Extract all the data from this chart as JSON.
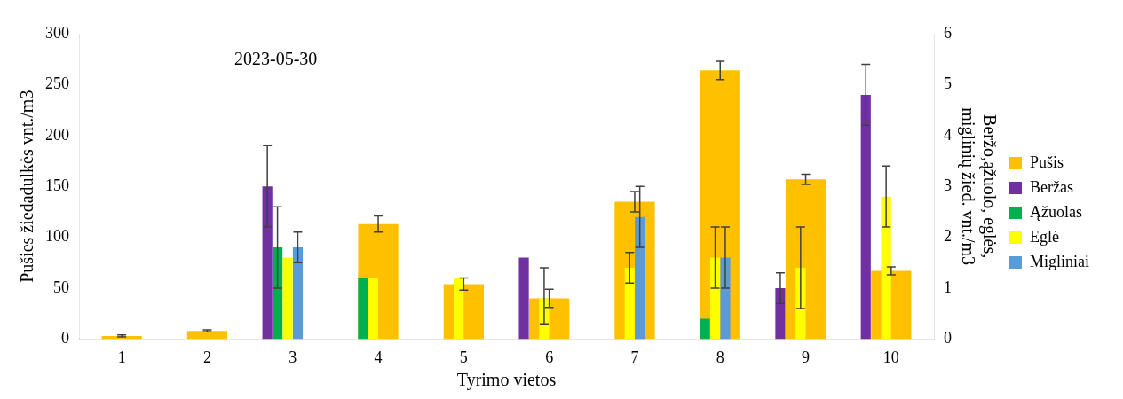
{
  "chart_data": {
    "type": "bar",
    "xlabel": "Tyrimo vietos",
    "ylabel": "Pušies žiedadulkės vnt./m3",
    "y2label": "Beržo,ąžuolo, eglės, miglinių žied. vnt./m3",
    "annotations": [
      "2023-05-30"
    ],
    "categories": [
      "1",
      "2",
      "3",
      "4",
      "5",
      "6",
      "7",
      "8",
      "9",
      "10"
    ],
    "series": [
      {
        "name": "Pušis",
        "color": "#ffc000",
        "values": [
          3,
          8,
          0,
          113,
          54,
          40,
          135,
          264,
          157,
          67
        ],
        "errors": [
          1,
          1,
          null,
          8,
          6,
          9,
          10,
          9,
          5,
          4
        ]
      },
      {
        "name": "Beržas",
        "color": "#7030a0",
        "axis": "y2",
        "values": [
          0,
          0,
          3.0,
          0,
          0,
          1.6,
          0,
          0,
          1.0,
          4.8
        ],
        "errors": [
          null,
          null,
          0.8,
          null,
          null,
          null,
          null,
          null,
          0.3,
          0.6
        ]
      },
      {
        "name": "Ąžuolas",
        "color": "#00b050",
        "axis": "y2",
        "values": [
          0,
          0,
          1.8,
          1.2,
          0,
          0,
          0,
          0.4,
          0,
          0
        ],
        "errors": [
          null,
          null,
          0.8,
          null,
          null,
          null,
          null,
          null,
          null,
          null
        ]
      },
      {
        "name": "Eglė",
        "color": "#ffff00",
        "axis": "y2",
        "values": [
          0,
          0,
          1.6,
          1.2,
          1.2,
          0.8,
          1.4,
          1.6,
          1.4,
          2.8
        ],
        "errors": [
          null,
          null,
          null,
          null,
          null,
          [
            0.3,
            1.4
          ],
          0.3,
          0.6,
          0.8,
          0.6
        ]
      },
      {
        "name": "Migliniai",
        "color": "#5b9bd5",
        "axis": "y2",
        "values": [
          0,
          0,
          1.8,
          0,
          0,
          0,
          2.4,
          1.6,
          0,
          0
        ],
        "errors": [
          null,
          null,
          0.3,
          null,
          null,
          null,
          0.6,
          0.6,
          null,
          null
        ]
      }
    ],
    "ylim": [
      0,
      300
    ],
    "yticks": [
      0,
      50,
      100,
      150,
      200,
      250,
      300
    ],
    "y2lim": [
      0,
      6
    ],
    "y2ticks": [
      0,
      1,
      2,
      3,
      4,
      5,
      6
    ],
    "grid": false,
    "legend": "right"
  }
}
